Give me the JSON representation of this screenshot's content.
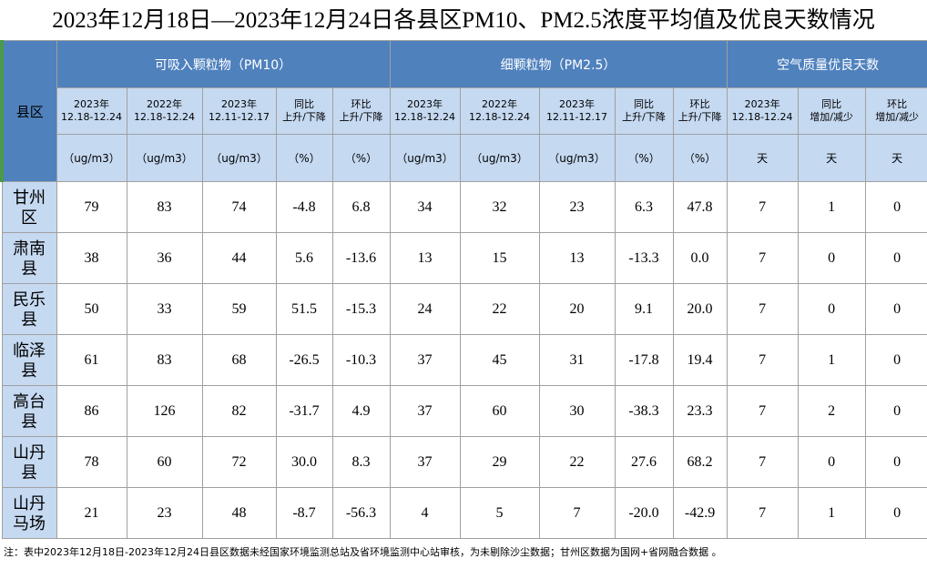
{
  "title": "2023年12月18日—2023年12月24日各县区PM10、PM2.5浓度平均值及优良天数情况",
  "table": {
    "corner": "县区",
    "groups": [
      "可吸入颗粒物（PM10）",
      "细颗粒物（PM2.5）",
      "空气质量优良天数"
    ],
    "subheaders": [
      [
        "2023年",
        "12.18-12.24"
      ],
      [
        "2022年",
        "12.18-12.24"
      ],
      [
        "2023年",
        "12.11-12.17"
      ],
      [
        "同比",
        "上升/下降"
      ],
      [
        "环比",
        "上升/下降"
      ],
      [
        "2023年",
        "12.18-12.24"
      ],
      [
        "2022年",
        "12.18-12.24"
      ],
      [
        "2023年",
        "12.11-12.17"
      ],
      [
        "同比",
        "上升/下降"
      ],
      [
        "环比",
        "上升/下降"
      ],
      [
        "2023年",
        "12.18-12.24"
      ],
      [
        "同比",
        "增加/减少"
      ],
      [
        "环比",
        "增加/减少"
      ]
    ],
    "units": [
      "（ug/m3）",
      "（ug/m3）",
      "（ug/m3）",
      "（%）",
      "（%）",
      "（ug/m3）",
      "（ug/m3）",
      "（ug/m3）",
      "（%）",
      "（%）",
      "天",
      "天",
      "天"
    ],
    "rows": [
      [
        "甘州区",
        "79",
        "83",
        "74",
        "-4.8",
        "6.8",
        "34",
        "32",
        "23",
        "6.3",
        "47.8",
        "7",
        "1",
        "0"
      ],
      [
        "肃南县",
        "38",
        "36",
        "44",
        "5.6",
        "-13.6",
        "13",
        "15",
        "13",
        "-13.3",
        "0.0",
        "7",
        "0",
        "0"
      ],
      [
        "民乐县",
        "50",
        "33",
        "59",
        "51.5",
        "-15.3",
        "24",
        "22",
        "20",
        "9.1",
        "20.0",
        "7",
        "0",
        "0"
      ],
      [
        "临泽县",
        "61",
        "83",
        "68",
        "-26.5",
        "-10.3",
        "37",
        "45",
        "31",
        "-17.8",
        "19.4",
        "7",
        "1",
        "0"
      ],
      [
        "高台县",
        "86",
        "126",
        "82",
        "-31.7",
        "4.9",
        "37",
        "60",
        "30",
        "-38.3",
        "23.3",
        "7",
        "2",
        "0"
      ],
      [
        "山丹县",
        "78",
        "60",
        "72",
        "30.0",
        "8.3",
        "37",
        "29",
        "22",
        "27.6",
        "68.2",
        "7",
        "0",
        "0"
      ],
      [
        "山丹马场",
        "21",
        "23",
        "48",
        "-8.7",
        "-56.3",
        "4",
        "5",
        "7",
        "-20.0",
        "-42.9",
        "7",
        "1",
        "0"
      ]
    ]
  },
  "footer": "注：表中2023年12月18日-2023年12月24日县区数据未经国家环境监测总站及省环境监测中心站审核，为未剔除沙尘数据；甘州区数据为国网+省网融合数据 。"
}
